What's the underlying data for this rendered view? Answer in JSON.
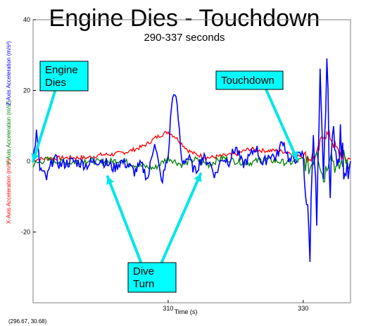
{
  "chart_data": {
    "type": "line",
    "title": "Engine Dies - Touchdown",
    "subtitle": "290-337 seconds",
    "xlabel": "Time (s)",
    "ylabels": {
      "z": "Z-Axis Acceleration (m/s²)",
      "y": "Y-Axis Acceleration (m/s²)",
      "x": "X-Axis Acceleration (m/s²)"
    },
    "xlim": [
      290,
      337
    ],
    "ylim": [
      -40,
      40
    ],
    "xticks": [
      310,
      330
    ],
    "yticks": [
      40,
      20,
      0,
      -20
    ],
    "grid": false,
    "cursor_readout": "(296.67, 30.68)",
    "colors": {
      "x": "#ff0000",
      "y": "#008000",
      "z": "#0000ff",
      "annotation_fill": "#00ffff",
      "arrow": "#00e6e6"
    },
    "series": [
      {
        "name": "X-Axis Acceleration",
        "color": "#ff0000",
        "x": [
          290,
          292,
          295,
          298,
          300,
          302,
          304,
          306,
          307,
          308,
          309,
          310,
          311,
          312,
          313,
          314,
          316,
          318,
          320,
          322,
          324,
          326,
          328,
          330,
          331,
          332,
          333,
          334,
          335,
          336,
          337
        ],
        "y": [
          0.5,
          0.8,
          1.0,
          1.0,
          1.8,
          2.0,
          2.7,
          4.0,
          5.0,
          6.5,
          7.5,
          8.3,
          7.0,
          5.0,
          3.0,
          2.0,
          1.0,
          1.5,
          2.0,
          3.5,
          3.0,
          3.0,
          2.5,
          1.5,
          1.0,
          1.2,
          8.0,
          7.0,
          3.0,
          1.0,
          0.5
        ]
      },
      {
        "name": "Y-Axis Acceleration",
        "color": "#008000",
        "x": [
          290,
          292,
          295,
          298,
          300,
          303,
          305,
          308,
          310,
          312,
          314,
          316,
          318,
          320,
          322,
          324,
          326,
          328,
          330,
          331,
          332,
          333,
          334,
          335,
          336,
          337
        ],
        "y": [
          -1.0,
          0.5,
          -0.5,
          0.3,
          -0.3,
          0.3,
          -1.0,
          -2.0,
          1.0,
          -1.0,
          0.5,
          -1.0,
          1.0,
          0.0,
          -0.5,
          0.5,
          0.0,
          -0.5,
          0.5,
          -2.0,
          4.0,
          -5.0,
          3.0,
          -3.0,
          1.0,
          0.0
        ]
      },
      {
        "name": "Z-Axis Acceleration",
        "color": "#0000ff",
        "x": [
          290,
          290.5,
          291,
          292,
          293,
          294,
          296,
          298,
          300,
          302,
          303,
          304,
          305,
          306,
          307,
          308,
          309,
          310,
          310.5,
          311,
          311.5,
          312,
          313,
          314,
          315,
          316,
          317,
          318,
          319,
          320,
          321,
          322,
          323,
          324,
          325,
          326,
          327,
          328,
          329,
          330,
          331,
          331.5,
          332,
          332.5,
          333,
          333.5,
          334,
          334.5,
          335,
          335.5,
          336,
          337
        ],
        "y": [
          0.0,
          8.0,
          -2.0,
          -5.0,
          1.0,
          -1.0,
          0.0,
          -1.0,
          0.5,
          -2.0,
          0.0,
          -1.0,
          -3.0,
          -1.0,
          -5.0,
          6.0,
          -6.0,
          1.0,
          16.0,
          20.0,
          12.0,
          0.0,
          1.0,
          -3.0,
          1.0,
          0.0,
          -4.0,
          1.0,
          0.0,
          4.0,
          -1.0,
          1.0,
          4.0,
          -1.0,
          2.0,
          1.0,
          6.0,
          0.0,
          1.0,
          2.0,
          -25.0,
          12.0,
          -18.0,
          22.0,
          -8.0,
          29.0,
          -10.0,
          14.0,
          -4.0,
          6.0,
          -1.0,
          0.0
        ]
      }
    ]
  },
  "annotations": {
    "engine_dies": "Engine\nDies",
    "touchdown": "Touchdown",
    "dive_turn": "Dive\nTurn"
  }
}
